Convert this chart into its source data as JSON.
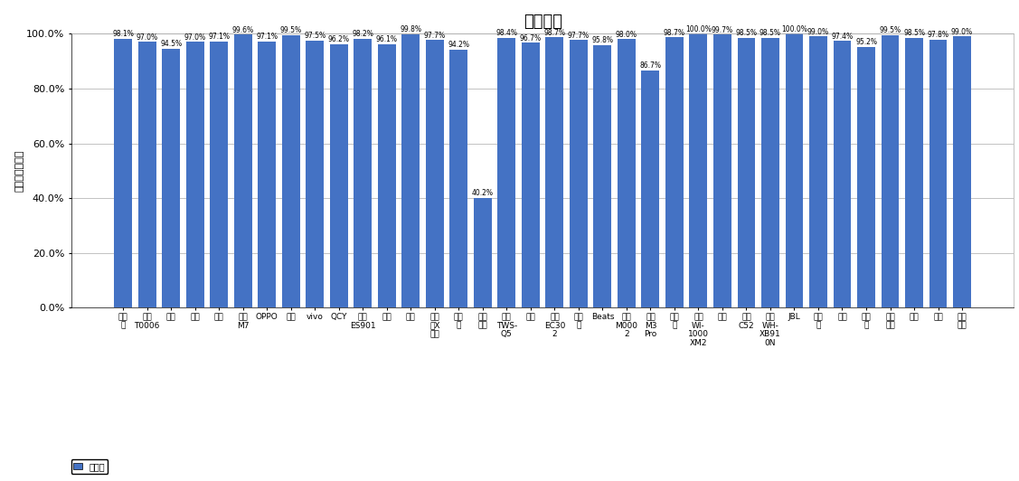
{
  "title": "通话降噪",
  "ylabel": "主观测试正确率",
  "categories": [
    "漫步\n者",
    "华为\nT0006",
    "苹果",
    "小米",
    "倍思",
    "酷狗\nM7",
    "OPPO",
    "荣耀",
    "vivo",
    "QCY",
    "万魔\nES901",
    "小度",
    "蜻蜓",
    "漫步\n者X\n芯心",
    "潮智\n能",
    "科大\n讯飞",
    "绍曼\nTWS-\nQ5",
    "三星",
    "万魔\nEC30\n2",
    "捷波\n朗",
    "Beats",
    "华为\nM000\n2",
    "酷狗\nM3\nPro",
    "爱国\n者",
    "索尼\nWI-\n1000\nXM2",
    "山水",
    "绍曼\nC52",
    "索尼\nWH-\nXB91\n0N",
    "JBL",
    "飞利\n浦",
    "联想",
    "第三\n角",
    "森海\n塞尔",
    "唐士",
    "索爱",
    "西伯\n利亚"
  ],
  "values": [
    98.1,
    97.0,
    94.5,
    97.0,
    97.1,
    99.6,
    97.1,
    99.5,
    97.5,
    96.2,
    98.2,
    96.1,
    99.8,
    97.7,
    94.2,
    40.2,
    98.4,
    96.7,
    98.7,
    97.7,
    95.8,
    98.0,
    86.7,
    98.7,
    100.0,
    99.7,
    98.5,
    98.5,
    100.0,
    99.0,
    97.4,
    95.2,
    99.5,
    98.5,
    97.8,
    99.0
  ],
  "bar_color": "#4472c4",
  "legend_label": "正确率",
  "legend_color": "#4472c4",
  "ylim": [
    0,
    100
  ],
  "yticks": [
    0,
    20,
    40,
    60,
    80,
    100
  ],
  "ytick_labels": [
    "0.0%",
    "20.0%",
    "40.0%",
    "60.0%",
    "80.0%",
    "100.0%"
  ],
  "value_labels": [
    "98.1%",
    "97.0%",
    "94.5%",
    "97.0%",
    "97.1%",
    "99.6%",
    "97.1%",
    "99.5%",
    "97.5%",
    "96.2%",
    "98.2%",
    "96.1%",
    "99.8%",
    "97.7%",
    "94.2%",
    "40.2%",
    "98.4%",
    "96.7%",
    "98.7%",
    "97.7%",
    "95.8%",
    "98.0%",
    "86.7%",
    "98.7%",
    "100.0%",
    "99.7%",
    "98.5%",
    "98.5%",
    "100.0%",
    "99.0%",
    "97.4%",
    "95.2%",
    "99.5%",
    "98.5%",
    "97.8%",
    "99.0%"
  ]
}
